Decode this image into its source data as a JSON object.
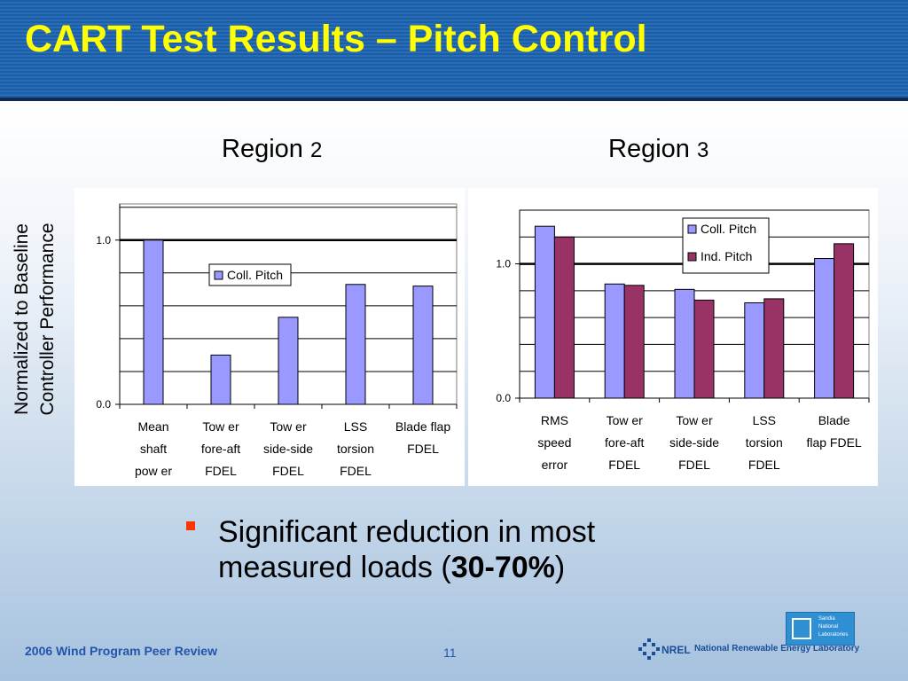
{
  "title": "CART Test Results – Pitch Control",
  "shared_ylabel_line1": "Normalized to Baseline",
  "shared_ylabel_line2": "Controller Performance",
  "regions": [
    {
      "label_word": "Region",
      "label_num": "2"
    },
    {
      "label_word": "Region",
      "label_num": "3"
    }
  ],
  "chart_data": [
    {
      "type": "bar",
      "title": "Region 2",
      "categories": [
        [
          "Mean",
          "shaft",
          "pow er"
        ],
        [
          "Tow er",
          "fore-aft",
          "FDEL"
        ],
        [
          "Tow er",
          "side-side",
          "FDEL"
        ],
        [
          "LSS",
          "torsion",
          "FDEL"
        ],
        [
          "Blade flap",
          "FDEL"
        ]
      ],
      "series": [
        {
          "name": "Coll. Pitch",
          "color": "#9999ff",
          "values": [
            1.0,
            0.3,
            0.53,
            0.73,
            0.72
          ]
        }
      ],
      "ylim": [
        0,
        1.22
      ],
      "yticks": [
        {
          "value": 0,
          "label": "0.0"
        },
        {
          "value": 1.0,
          "label": "1.0"
        }
      ],
      "gridlines": [
        0.2,
        0.4,
        0.6,
        0.8,
        1.2
      ],
      "baseline": 1.0,
      "legend": "center"
    },
    {
      "type": "bar",
      "title": "Region 3",
      "categories": [
        [
          "RMS",
          "speed",
          "error"
        ],
        [
          "Tow er",
          "fore-aft",
          "FDEL"
        ],
        [
          "Tow er",
          "side-side",
          "FDEL"
        ],
        [
          "LSS",
          "torsion",
          "FDEL"
        ],
        [
          "Blade",
          "flap FDEL"
        ]
      ],
      "series": [
        {
          "name": "Coll. Pitch",
          "color": "#9999ff",
          "values": [
            1.28,
            0.85,
            0.81,
            0.71,
            1.04
          ]
        },
        {
          "name": "Ind. Pitch",
          "color": "#993366",
          "values": [
            1.2,
            0.84,
            0.73,
            0.74,
            1.15
          ]
        }
      ],
      "ylim": [
        0,
        1.4
      ],
      "yticks": [
        {
          "value": 0,
          "label": "0.0"
        },
        {
          "value": 1.0,
          "label": "1.0"
        }
      ],
      "gridlines": [
        0.2,
        0.4,
        0.6,
        0.8,
        1.2,
        1.4
      ],
      "baseline": 1.0,
      "legend": "top-right"
    }
  ],
  "bullet": {
    "line1": "Significant reduction in most",
    "line2_prefix": "measured loads (",
    "line2_bold": "30-70%",
    "line2_suffix": ")"
  },
  "footer": {
    "left": "2006 Wind Program Peer Review",
    "page": "11",
    "nrel_text": "National Renewable Energy Laboratory",
    "nrel_logo_text": "NREL",
    "sandia_line1": "Sandia",
    "sandia_line2": "National",
    "sandia_line3": "Laboratories"
  }
}
